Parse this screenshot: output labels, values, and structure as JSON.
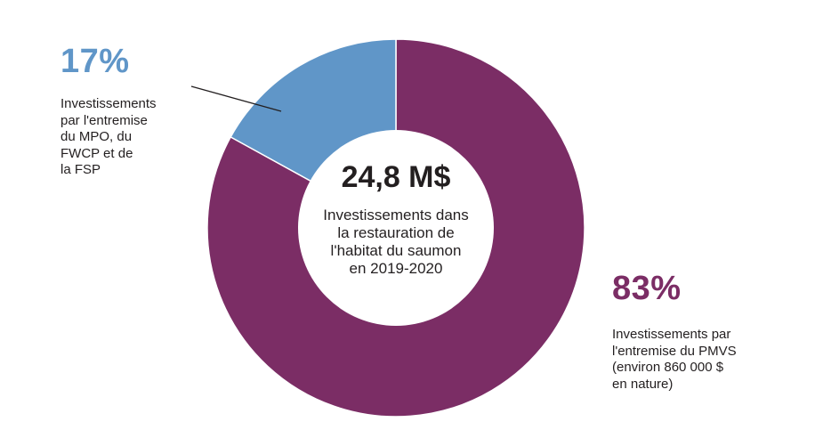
{
  "chart_data": {
    "type": "pie",
    "donut": true,
    "slices": [
      {
        "label": "Investissements par l'entremise du PMVS (environ 860 000 $ en nature)",
        "percent_label": "83%",
        "value": 83,
        "color": "#7b2d65"
      },
      {
        "label": "Investissements par l'entremise du MPO, du FWCP et de la FSP",
        "percent_label": "17%",
        "value": 17,
        "color": "#6096c8"
      }
    ],
    "center": {
      "total": "24,8 M$",
      "description": "Investissements dans\nla restauration de\nl'habitat du saumon\nen 2019-2020"
    },
    "annotations": {
      "pmvs": {
        "percent": "83%",
        "text": "Investissements par\nl'entremise du PMVS\n(environ 860 000 $\nen nature)",
        "color": "#7b2d65"
      },
      "mpo": {
        "percent": "17%",
        "text": "Investissements\npar l'entremise\ndu MPO, du\nFWCP et de\nla FSP",
        "color": "#6096c8"
      }
    }
  }
}
